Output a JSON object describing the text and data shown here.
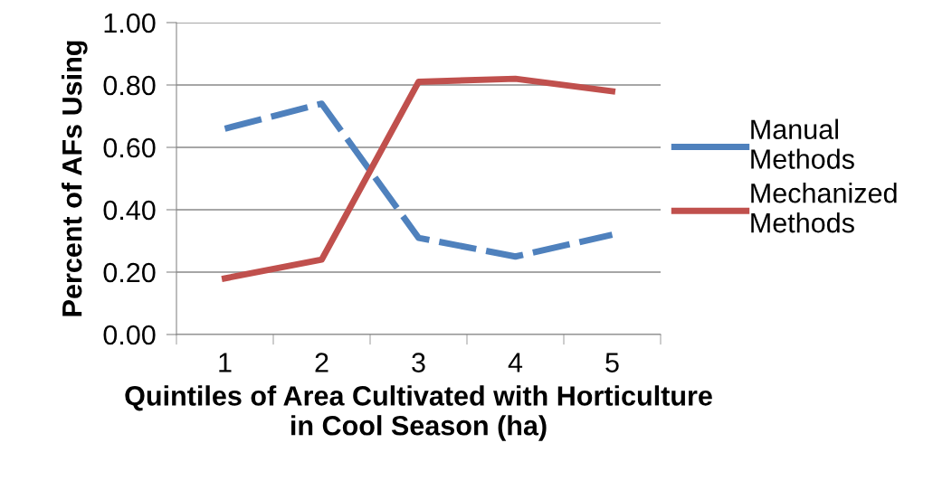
{
  "chart_data": {
    "type": "line",
    "xlabel": "Quintiles of Area Cultivated with Horticulture\nin Cool Season (ha)",
    "ylabel": "Percent of AFs Using",
    "categories": [
      "1",
      "2",
      "3",
      "4",
      "5"
    ],
    "series": [
      {
        "name": "Manual Methods",
        "color": "#4f81bd",
        "values": [
          0.66,
          0.74,
          0.31,
          0.25,
          0.32
        ],
        "line_style": "dashed"
      },
      {
        "name": "Mechanized Methods",
        "color": "#c0504d",
        "values": [
          0.18,
          0.24,
          0.81,
          0.82,
          0.78
        ],
        "line_style": "solid"
      }
    ],
    "ylim": [
      0,
      1
    ],
    "yticks": [
      {
        "value": 0,
        "label": "0.00"
      },
      {
        "value": 0.2,
        "label": "0.20"
      },
      {
        "value": 0.4,
        "label": "0.40"
      },
      {
        "value": 0.6,
        "label": "0.60"
      },
      {
        "value": 0.8,
        "label": "0.80"
      },
      {
        "value": 1,
        "label": "1.00"
      }
    ],
    "grid": "y",
    "legend": "right",
    "marker": "none"
  }
}
